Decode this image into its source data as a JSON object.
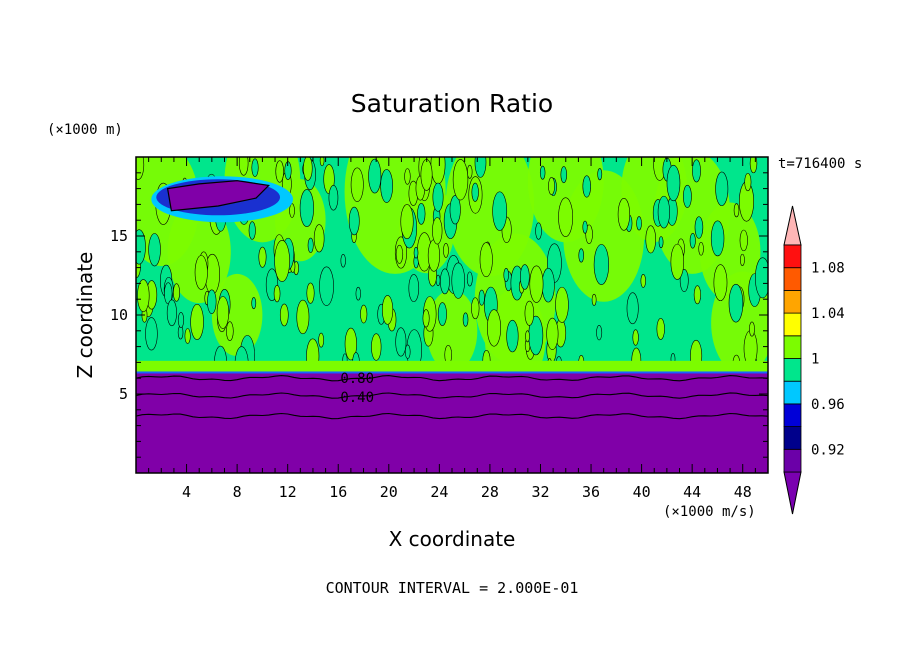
{
  "chart_data": {
    "type": "contour",
    "title": "Saturation Ratio",
    "xlabel": "X coordinate",
    "ylabel": "Z coordinate",
    "x_unit": "(×1000 m/s)",
    "y_unit": "(×1000 m)",
    "time_label": "t=716400 s",
    "footer": "CONTOUR INTERVAL = 2.000E-01",
    "xlim": [
      0,
      50
    ],
    "ylim": [
      0,
      20
    ],
    "x_ticks": [
      4,
      8,
      12,
      16,
      20,
      24,
      28,
      32,
      36,
      40,
      44,
      48
    ],
    "y_ticks": [
      5,
      10,
      15
    ],
    "contour_labels": [
      {
        "text": "0.80",
        "x": 17.5,
        "y": 6.0
      },
      {
        "text": "0.40",
        "x": 17.5,
        "y": 4.8
      }
    ],
    "colorbar": {
      "levels": [
        0.9,
        0.92,
        0.94,
        0.96,
        0.98,
        1.0,
        1.02,
        1.04,
        1.06,
        1.08,
        1.1
      ],
      "colors": [
        "#6b00a8",
        "#00008b",
        "#0000d8",
        "#00c8ff",
        "#00e68c",
        "#7cfc00",
        "#ffff00",
        "#ffa500",
        "#ff5a00",
        "#ff1010"
      ],
      "under_color": "#7a00b0",
      "over_color": "#ffb6b6",
      "tick_labels": [
        {
          "value": 0.92,
          "label": "0.92"
        },
        {
          "value": 0.96,
          "label": "0.96"
        },
        {
          "value": 1.0,
          "label": "1"
        },
        {
          "value": 1.04,
          "label": "1.04"
        },
        {
          "value": 1.08,
          "label": "1.08"
        }
      ]
    },
    "regions": {
      "dry_layer_top_z": 6.3,
      "dry_layer_color": "#8000a8",
      "background_color": "#00e68c",
      "moist_patch_color": "#7cfc00",
      "dry_patch": {
        "x": [
          2,
          11
        ],
        "z": [
          16.5,
          18.4
        ]
      }
    }
  }
}
